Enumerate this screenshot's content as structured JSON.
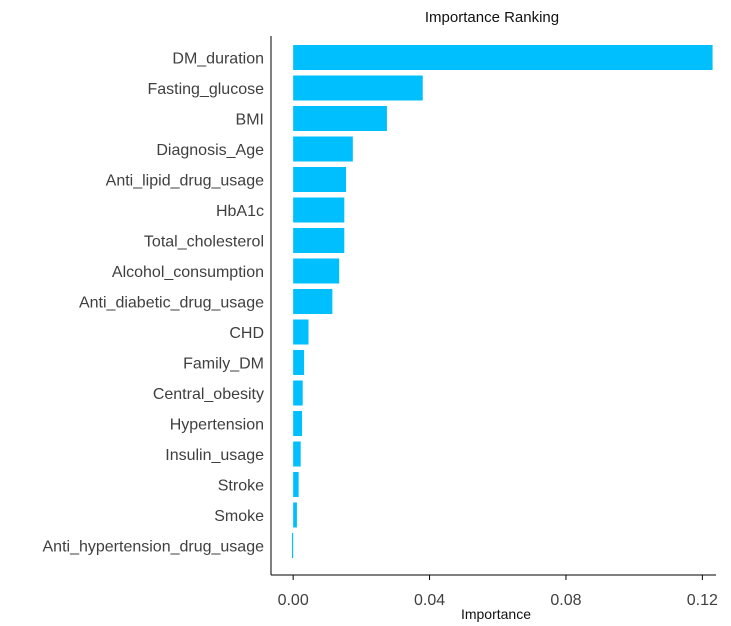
{
  "chart_data": {
    "type": "bar",
    "orientation": "horizontal",
    "title": "Importance Ranking",
    "xlabel": "Importance",
    "ylabel": "",
    "categories": [
      "DM_duration",
      "Fasting_glucose",
      "BMI",
      "Diagnosis_Age",
      "Anti_lipid_drug_usage",
      "HbA1c",
      "Total_cholesterol",
      "Alcohol_consumption",
      "Anti_diabetic_drug_usage",
      "CHD",
      "Family_DM",
      "Central_obesity",
      "Hypertension",
      "Insulin_usage",
      "Stroke",
      "Smoke",
      "Anti_hypertension_drug_usage"
    ],
    "values": [
      0.123,
      0.038,
      0.0275,
      0.0175,
      0.0155,
      0.015,
      0.015,
      0.0135,
      0.0115,
      0.0045,
      0.0032,
      0.0028,
      0.0026,
      0.0022,
      0.0016,
      0.0011,
      -0.0003
    ],
    "xlim": [
      -0.0065,
      0.124
    ],
    "xticks": [
      0.0,
      0.04,
      0.08,
      0.12
    ],
    "xtick_labels": [
      "0.00",
      "0.04",
      "0.08",
      "0.12"
    ],
    "bar_color": "#00bfff",
    "grid": false,
    "legend": "none"
  }
}
